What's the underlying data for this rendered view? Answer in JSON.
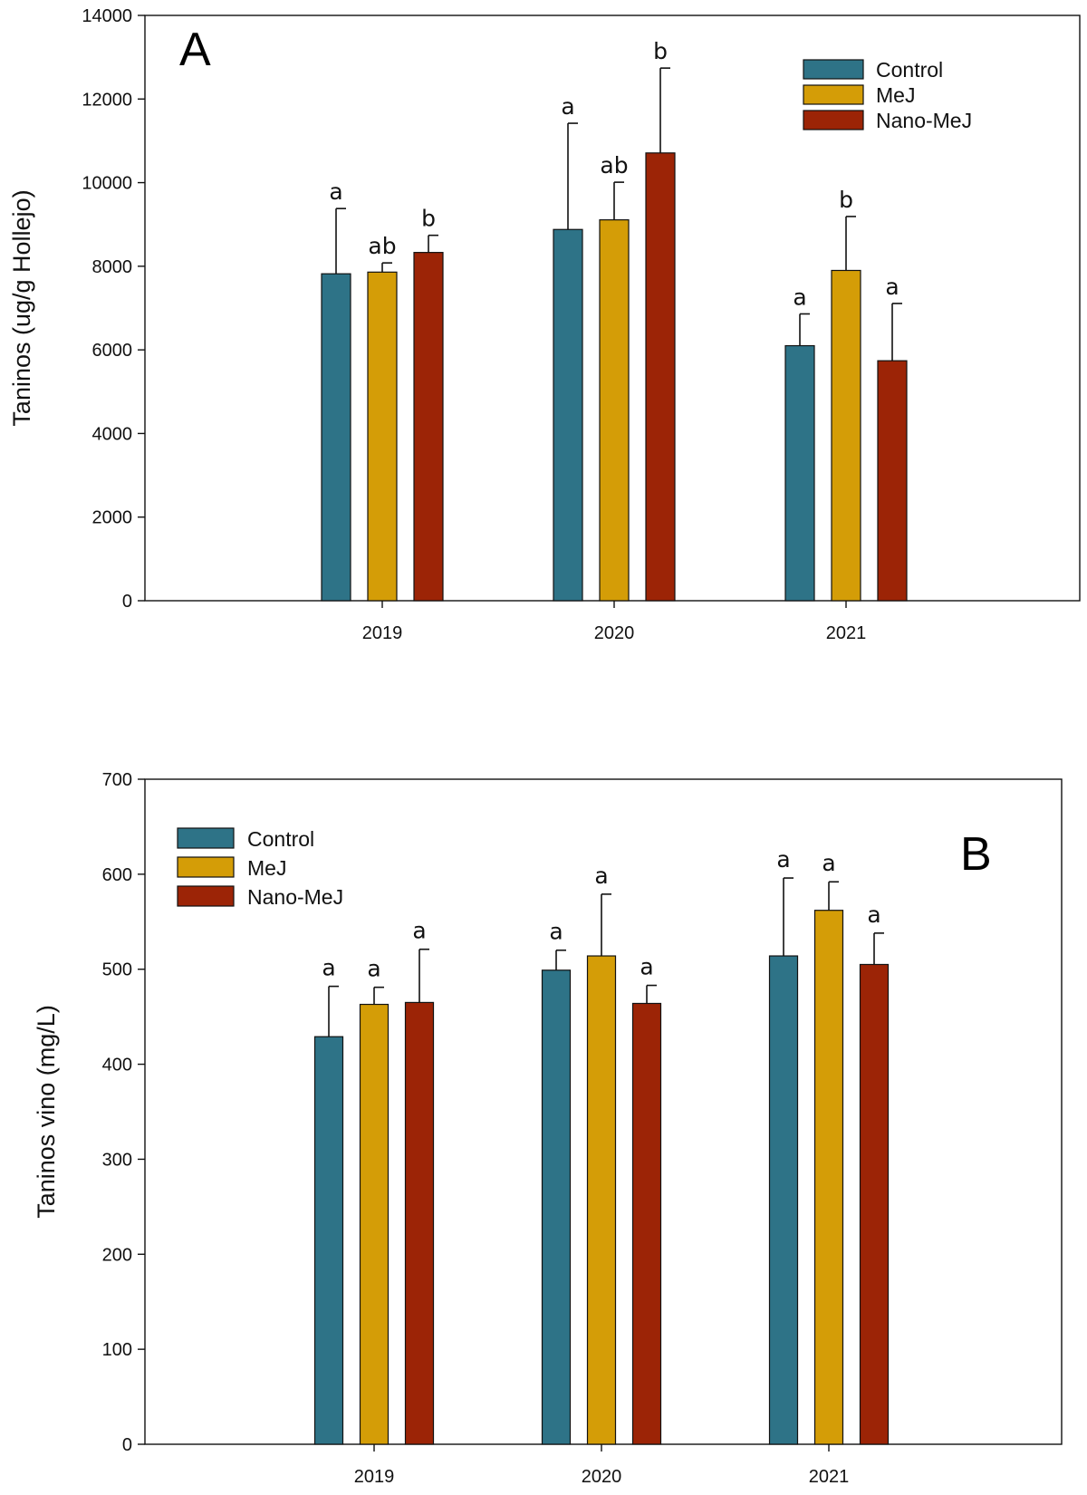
{
  "chart_data": [
    {
      "id": "A",
      "type": "bar",
      "panel_label": "A",
      "title": "",
      "xlabel": "",
      "ylabel": "Taninos (ug/g Hollejo)",
      "ylim": [
        0,
        14000
      ],
      "yticks": [
        0,
        2000,
        4000,
        6000,
        8000,
        10000,
        12000,
        14000
      ],
      "categories": [
        "2019",
        "2020",
        "2021"
      ],
      "legend_position": "top-right",
      "series": [
        {
          "name": "Control",
          "color": "#2e7387",
          "values": [
            7820,
            8880,
            6100
          ],
          "errors": [
            1560,
            2540,
            760
          ],
          "labels": [
            "a",
            "a",
            "a"
          ]
        },
        {
          "name": "MeJ",
          "color": "#d49d07",
          "values": [
            7860,
            9110,
            7900
          ],
          "errors": [
            220,
            900,
            1290
          ],
          "labels": [
            "ab",
            "ab",
            "b"
          ]
        },
        {
          "name": "Nano-MeJ",
          "color": "#9c2406",
          "values": [
            8330,
            10710,
            5740
          ],
          "errors": [
            410,
            2030,
            1370
          ],
          "labels": [
            "b",
            "b",
            "a"
          ]
        }
      ]
    },
    {
      "id": "B",
      "type": "bar",
      "panel_label": "B",
      "title": "",
      "xlabel": "",
      "ylabel": "Taninos vino (mg/L)",
      "ylim": [
        0,
        700
      ],
      "yticks": [
        0,
        100,
        200,
        300,
        400,
        500,
        600,
        700
      ],
      "categories": [
        "2019",
        "2020",
        "2021"
      ],
      "legend_position": "top-left",
      "series": [
        {
          "name": "Control",
          "color": "#2e7387",
          "values": [
            429,
            499,
            514
          ],
          "errors": [
            53,
            21,
            82
          ],
          "labels": [
            "a",
            "a",
            "a"
          ]
        },
        {
          "name": "MeJ",
          "color": "#d49d07",
          "values": [
            463,
            514,
            562
          ],
          "errors": [
            18,
            65,
            30
          ],
          "labels": [
            "a",
            "a",
            "a"
          ]
        },
        {
          "name": "Nano-MeJ",
          "color": "#9c2406",
          "values": [
            465,
            464,
            505
          ],
          "errors": [
            56,
            19,
            33
          ],
          "labels": [
            "a",
            "a",
            "a"
          ]
        }
      ]
    }
  ]
}
